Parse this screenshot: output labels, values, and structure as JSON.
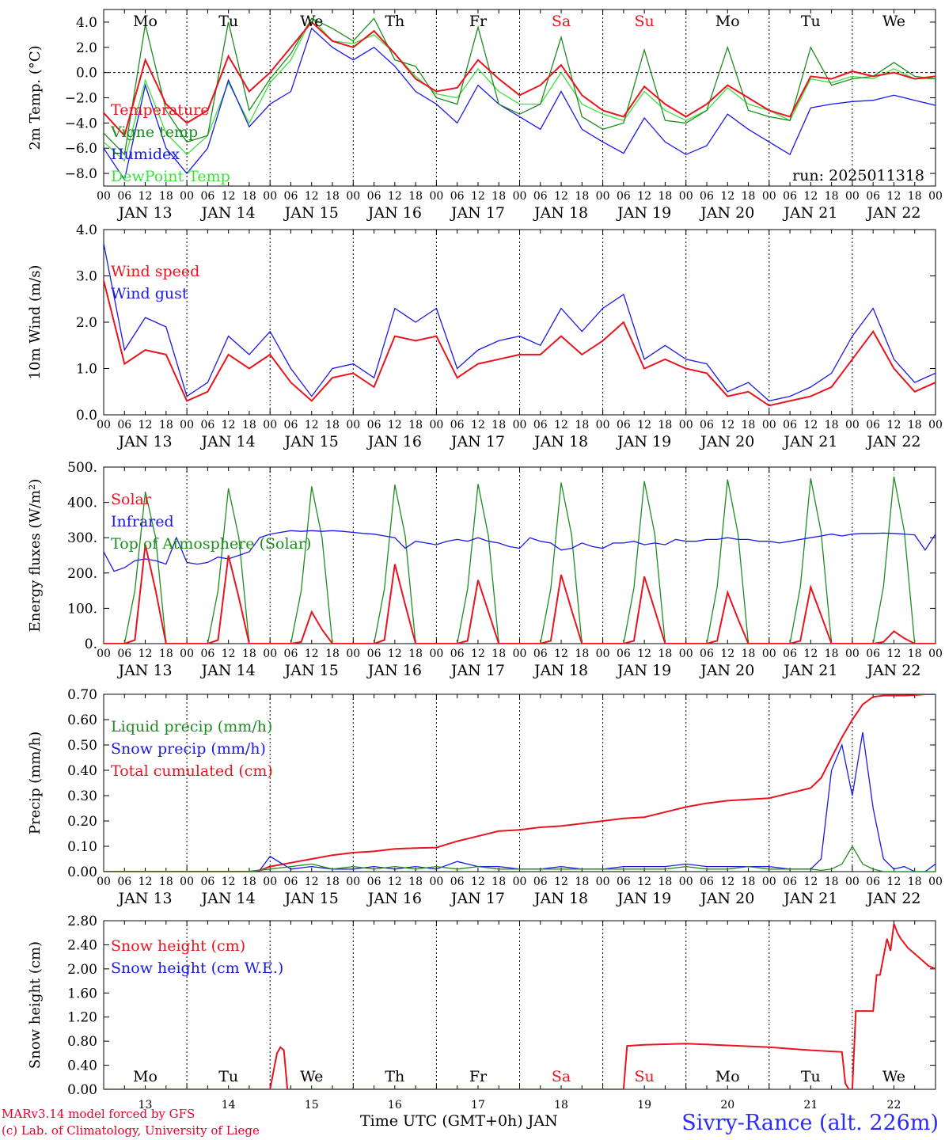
{
  "colors": {
    "red": "#e8141e",
    "blue": "#1a1ae6",
    "green": "#1e8c1e",
    "lightgreen": "#3de03d",
    "axis": "#000000"
  },
  "days": {
    "names": [
      "Mo",
      "Tu",
      "We",
      "Th",
      "Fr",
      "Sa",
      "Su",
      "Mo",
      "Tu",
      "We"
    ],
    "weekend_color": "#e8141e",
    "weekend": [
      false,
      false,
      false,
      false,
      false,
      true,
      true,
      false,
      false,
      false
    ],
    "dates": [
      "JAN 13",
      "JAN 14",
      "JAN 15",
      "JAN 16",
      "JAN 17",
      "JAN 18",
      "JAN 19",
      "JAN 20",
      "JAN 21",
      "JAN 22"
    ],
    "numbers": [
      "13",
      "14",
      "15",
      "16",
      "17",
      "18",
      "19",
      "20",
      "21",
      "22"
    ],
    "hour_ticks": [
      "00",
      "06",
      "12",
      "18"
    ],
    "final_tick": "00"
  },
  "footer": {
    "credit_line1": "MARv3.14 model forced by GFS",
    "credit_line2": "(c) Lab. of Climatology, University of Liege",
    "x_title": "Time UTC (GMT+0h) JAN",
    "station": "Sivry-Rance (alt. 226m)"
  },
  "chart_data": [
    {
      "type": "line",
      "id": "temp",
      "ylabel": "2m Temp. (°C)",
      "ylim": [
        -9,
        5
      ],
      "yticks": [
        -8,
        -6,
        -4,
        -2,
        0,
        2,
        4
      ],
      "ytick_labels": [
        "−8.0",
        "−6.0",
        "−4.0",
        "−2.0",
        "0.0",
        "2.0",
        "4.0"
      ],
      "zero_line": true,
      "annotation": "run: 2025011318",
      "x_hours": [
        0,
        6,
        12,
        18,
        24,
        30,
        36,
        42,
        48,
        54,
        60,
        66,
        72,
        78,
        84,
        90,
        96,
        102,
        108,
        114,
        120,
        126,
        132,
        138,
        144,
        150,
        156,
        162,
        168,
        174,
        180,
        186,
        192,
        198,
        204,
        210,
        216,
        222,
        228,
        234,
        240
      ],
      "series": [
        {
          "name": "Temperature",
          "color": "red",
          "values": [
            -3.2,
            -5.0,
            1.0,
            -2.5,
            -4.0,
            -3.0,
            1.3,
            -1.5,
            0.0,
            2.0,
            4.0,
            2.5,
            2.0,
            3.3,
            1.5,
            -0.5,
            -1.5,
            -1.2,
            1.0,
            -0.5,
            -1.8,
            -1.0,
            0.6,
            -1.8,
            -3.0,
            -3.5,
            -1.1,
            -2.5,
            -3.5,
            -2.5,
            -1.0,
            -2.0,
            -3.0,
            -3.5,
            -0.3,
            -0.5,
            0.1,
            -0.3,
            0.0,
            -0.5,
            -0.3
          ]
        },
        {
          "name": "Vigne temp",
          "color": "green",
          "values": [
            -4.8,
            -6.5,
            3.8,
            -3.0,
            -5.5,
            -5.0,
            4.0,
            -3.0,
            -0.5,
            1.5,
            4.3,
            3.5,
            2.5,
            4.3,
            1.0,
            0.5,
            -2.0,
            -2.5,
            3.6,
            -2.5,
            -3.3,
            -2.5,
            2.8,
            -3.5,
            -4.5,
            -4.0,
            1.8,
            -3.8,
            -4.0,
            -3.0,
            2.0,
            -3.0,
            -3.5,
            -3.8,
            2.0,
            -1.0,
            -0.5,
            -0.3,
            0.8,
            -0.3,
            -0.5
          ]
        },
        {
          "name": "Humidex",
          "color": "blue",
          "values": [
            -6.0,
            -8.5,
            -1.0,
            -6.0,
            -8.0,
            -6.0,
            -0.6,
            -4.3,
            -2.5,
            -1.5,
            3.5,
            2.0,
            1.0,
            2.0,
            0.5,
            -1.5,
            -2.5,
            -4.0,
            -1.0,
            -2.5,
            -3.5,
            -4.5,
            -1.5,
            -4.5,
            -5.5,
            -6.4,
            -3.6,
            -5.5,
            -6.5,
            -5.8,
            -3.3,
            -4.5,
            -5.5,
            -6.5,
            -2.8,
            -2.5,
            -2.3,
            -2.2,
            -1.8,
            -2.2,
            -2.6
          ]
        },
        {
          "name": "DewPoint Temp",
          "color": "lightgreen",
          "values": [
            -5.5,
            -7.0,
            -0.6,
            -4.8,
            -6.5,
            -5.0,
            -0.8,
            -4.0,
            -0.8,
            1.0,
            4.3,
            2.5,
            2.3,
            3.0,
            1.5,
            -0.3,
            -1.7,
            -2.0,
            0.3,
            -1.5,
            -2.5,
            -2.5,
            0.0,
            -2.5,
            -3.3,
            -3.8,
            -1.5,
            -3.0,
            -3.8,
            -3.0,
            -1.2,
            -2.5,
            -3.0,
            -3.8,
            -0.5,
            -0.8,
            -0.3,
            -0.5,
            0.3,
            -0.5,
            -0.5
          ]
        }
      ]
    },
    {
      "type": "line",
      "id": "wind",
      "ylabel": "10m Wind (m/s)",
      "ylim": [
        0,
        4
      ],
      "yticks": [
        0,
        1,
        2,
        3,
        4
      ],
      "ytick_labels": [
        "0.0",
        "1.0",
        "2.0",
        "3.0",
        "4.0"
      ],
      "x_hours": [
        0,
        6,
        12,
        18,
        24,
        30,
        36,
        42,
        48,
        54,
        60,
        66,
        72,
        78,
        84,
        90,
        96,
        102,
        108,
        114,
        120,
        126,
        132,
        138,
        144,
        150,
        156,
        162,
        168,
        174,
        180,
        186,
        192,
        198,
        204,
        210,
        216,
        222,
        228,
        234,
        240
      ],
      "series": [
        {
          "name": "Wind speed",
          "color": "red",
          "values": [
            2.9,
            1.1,
            1.4,
            1.3,
            0.3,
            0.5,
            1.3,
            1.0,
            1.3,
            0.7,
            0.3,
            0.8,
            0.9,
            0.6,
            1.7,
            1.6,
            1.7,
            0.8,
            1.1,
            1.2,
            1.3,
            1.3,
            1.7,
            1.3,
            1.6,
            2.0,
            1.0,
            1.2,
            1.0,
            0.9,
            0.4,
            0.5,
            0.2,
            0.3,
            0.4,
            0.6,
            1.2,
            1.8,
            1.0,
            0.5,
            0.7
          ]
        },
        {
          "name": "Wind gust",
          "color": "blue",
          "values": [
            3.7,
            1.4,
            2.1,
            1.9,
            0.4,
            0.7,
            1.7,
            1.3,
            1.8,
            1.0,
            0.4,
            1.0,
            1.1,
            0.8,
            2.3,
            2.0,
            2.3,
            1.0,
            1.4,
            1.6,
            1.7,
            1.5,
            2.3,
            1.8,
            2.3,
            2.6,
            1.2,
            1.5,
            1.2,
            1.1,
            0.5,
            0.7,
            0.3,
            0.4,
            0.6,
            0.9,
            1.7,
            2.3,
            1.2,
            0.7,
            0.9
          ]
        }
      ]
    },
    {
      "type": "line",
      "id": "energy",
      "ylabel": "Energy fluxes (W/m²)",
      "ylim": [
        0,
        500
      ],
      "yticks": [
        0,
        100,
        200,
        300,
        400,
        500
      ],
      "ytick_labels": [
        "0.",
        "100.",
        "200.",
        "300.",
        "400.",
        "500."
      ],
      "x_hours": [
        0,
        3,
        6,
        9,
        12,
        15,
        18,
        21,
        24,
        27,
        30,
        33,
        36,
        39,
        42,
        45,
        48,
        51,
        54,
        57,
        60,
        63,
        66,
        69,
        72,
        75,
        78,
        81,
        84,
        87,
        90,
        93,
        96,
        99,
        102,
        105,
        108,
        111,
        114,
        117,
        120,
        123,
        126,
        129,
        132,
        135,
        138,
        141,
        144,
        147,
        150,
        153,
        156,
        159,
        162,
        165,
        168,
        171,
        174,
        177,
        180,
        183,
        186,
        189,
        192,
        195,
        198,
        201,
        204,
        207,
        210,
        213,
        216,
        219,
        222,
        225,
        228,
        231,
        234,
        237,
        240
      ],
      "series": [
        {
          "name": "Solar",
          "color": "red",
          "values": [
            0,
            0,
            0,
            10,
            280,
            150,
            0,
            0,
            0,
            0,
            0,
            10,
            250,
            130,
            0,
            0,
            0,
            0,
            0,
            5,
            90,
            40,
            0,
            0,
            0,
            0,
            0,
            10,
            225,
            110,
            0,
            0,
            0,
            0,
            0,
            8,
            180,
            90,
            0,
            0,
            0,
            0,
            0,
            8,
            195,
            95,
            0,
            0,
            0,
            0,
            0,
            8,
            190,
            95,
            0,
            0,
            0,
            0,
            0,
            8,
            145,
            70,
            0,
            0,
            0,
            0,
            0,
            8,
            160,
            80,
            0,
            0,
            0,
            0,
            0,
            5,
            35,
            15,
            0,
            0,
            0
          ]
        },
        {
          "name": "Infrared",
          "color": "blue",
          "values": [
            260,
            205,
            215,
            235,
            240,
            235,
            225,
            300,
            230,
            225,
            230,
            245,
            240,
            250,
            260,
            300,
            310,
            315,
            320,
            318,
            320,
            318,
            320,
            318,
            315,
            312,
            310,
            305,
            300,
            270,
            290,
            285,
            280,
            290,
            295,
            290,
            300,
            290,
            285,
            275,
            270,
            300,
            290,
            285,
            265,
            270,
            285,
            275,
            270,
            285,
            285,
            290,
            280,
            285,
            280,
            295,
            290,
            290,
            295,
            295,
            300,
            295,
            295,
            290,
            290,
            285,
            290,
            295,
            300,
            305,
            310,
            305,
            310,
            312,
            312,
            313,
            312,
            310,
            308,
            265,
            310
          ]
        },
        {
          "name": "Top of Atmosphere (Solar)",
          "color": "green",
          "values": [
            0,
            0,
            0,
            150,
            430,
            300,
            0,
            0,
            0,
            0,
            0,
            150,
            440,
            300,
            0,
            0,
            0,
            0,
            0,
            150,
            445,
            300,
            0,
            0,
            0,
            0,
            0,
            155,
            450,
            305,
            0,
            0,
            0,
            0,
            0,
            155,
            452,
            305,
            0,
            0,
            0,
            0,
            0,
            155,
            456,
            308,
            0,
            0,
            0,
            0,
            0,
            158,
            460,
            310,
            0,
            0,
            0,
            0,
            0,
            160,
            465,
            312,
            0,
            0,
            0,
            0,
            0,
            160,
            468,
            315,
            0,
            0,
            0,
            0,
            0,
            162,
            473,
            318,
            0,
            0,
            0
          ]
        }
      ]
    },
    {
      "type": "line",
      "id": "precip",
      "ylabel": "Precip (mm/h)",
      "ylim": [
        0,
        0.7
      ],
      "yticks": [
        0,
        0.1,
        0.2,
        0.3,
        0.4,
        0.5,
        0.6,
        0.7
      ],
      "ytick_labels": [
        "0.00",
        "0.10",
        "0.20",
        "0.30",
        "0.40",
        "0.50",
        "0.60",
        "0.70"
      ],
      "x_hours": [
        0,
        12,
        24,
        36,
        42,
        45,
        48,
        54,
        60,
        66,
        72,
        78,
        84,
        90,
        96,
        102,
        108,
        114,
        120,
        126,
        132,
        138,
        144,
        150,
        156,
        162,
        168,
        174,
        180,
        186,
        192,
        198,
        204,
        207,
        210,
        213,
        216,
        219,
        222,
        225,
        228,
        231,
        234,
        237,
        240
      ],
      "series": [
        {
          "name": "Liquid precip (mm/h)",
          "color": "green",
          "values": [
            0,
            0,
            0,
            0,
            0,
            0.005,
            0.01,
            0.02,
            0.03,
            0.01,
            0.02,
            0.01,
            0.02,
            0.01,
            0.02,
            0.01,
            0.02,
            0.01,
            0.01,
            0.01,
            0.01,
            0.01,
            0.01,
            0.01,
            0.01,
            0.01,
            0.02,
            0.01,
            0.01,
            0.02,
            0.01,
            0.01,
            0.01,
            0.005,
            0.01,
            0.03,
            0.1,
            0.03,
            0.01,
            0,
            0,
            0,
            0,
            0,
            0
          ]
        },
        {
          "name": "Snow precip (mm/h)",
          "color": "blue",
          "values": [
            0,
            0,
            0,
            0,
            0,
            0.005,
            0.06,
            0.01,
            0.02,
            0.01,
            0.01,
            0.02,
            0.01,
            0.02,
            0.01,
            0.04,
            0.02,
            0.02,
            0.01,
            0.01,
            0.02,
            0.01,
            0.01,
            0.02,
            0.02,
            0.02,
            0.03,
            0.02,
            0.02,
            0.02,
            0.02,
            0.01,
            0.01,
            0.05,
            0.4,
            0.5,
            0.3,
            0.55,
            0.25,
            0.05,
            0.01,
            0.02,
            0,
            0,
            0.03
          ]
        },
        {
          "name": "Total cumulated (cm)",
          "color": "red",
          "values": [
            0,
            0,
            0,
            0,
            0,
            0.005,
            0.02,
            0.035,
            0.05,
            0.065,
            0.075,
            0.08,
            0.09,
            0.093,
            0.095,
            0.12,
            0.14,
            0.16,
            0.165,
            0.175,
            0.18,
            0.19,
            0.2,
            0.21,
            0.215,
            0.235,
            0.255,
            0.27,
            0.28,
            0.285,
            0.29,
            0.31,
            0.33,
            0.37,
            0.45,
            0.53,
            0.6,
            0.66,
            0.69,
            0.695,
            0.695,
            0.695,
            0.697,
            0.7,
            0.7
          ]
        }
      ]
    },
    {
      "type": "line",
      "id": "snow",
      "ylabel": "Snow height (cm)",
      "ylim": [
        0,
        2.8
      ],
      "yticks": [
        0,
        0.4,
        0.8,
        1.2,
        1.6,
        2.0,
        2.4,
        2.8
      ],
      "ytick_labels": [
        "0.00",
        "0.40",
        "0.80",
        "1.20",
        "1.60",
        "2.00",
        "2.40",
        "2.80"
      ],
      "x_hours": [
        0,
        48,
        50,
        51,
        52,
        53,
        54,
        96,
        144,
        150,
        151,
        156,
        168,
        180,
        192,
        204,
        213,
        214,
        215,
        216,
        217,
        219,
        220,
        222,
        223,
        224,
        225,
        226,
        227,
        228,
        229,
        230,
        232,
        234,
        236,
        238,
        240
      ],
      "series": [
        {
          "name": "Snow height (cm)",
          "color": "red",
          "values": [
            0,
            0,
            0.6,
            0.7,
            0.65,
            0,
            0,
            0,
            0,
            0,
            0.72,
            0.74,
            0.76,
            0.73,
            0.7,
            0.65,
            0.62,
            0.1,
            0,
            0,
            1.3,
            1.3,
            1.3,
            1.3,
            1.9,
            1.9,
            2.2,
            2.5,
            2.3,
            2.75,
            2.6,
            2.5,
            2.35,
            2.25,
            2.15,
            2.05,
            2.0
          ]
        },
        {
          "name": "Snow height (cm W.E.)",
          "color": "blue",
          "values": [
            0,
            0,
            0,
            0,
            0,
            0,
            0,
            0,
            0,
            0,
            0,
            0,
            0,
            0,
            0,
            0,
            0,
            0,
            0,
            0,
            0,
            0,
            0,
            0,
            0,
            0,
            0,
            0,
            0,
            0,
            0,
            0,
            0,
            0,
            0,
            0,
            0
          ]
        }
      ]
    }
  ]
}
